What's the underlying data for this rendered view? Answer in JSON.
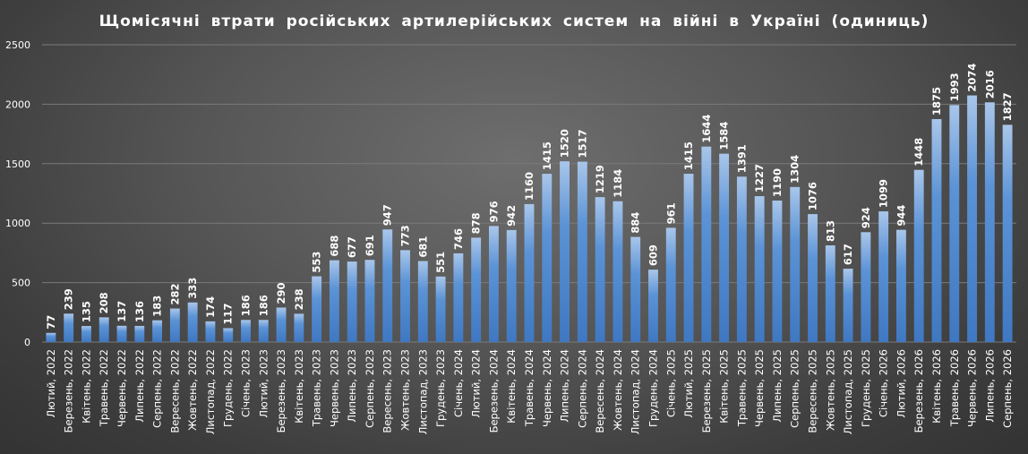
{
  "chart_data": {
    "type": "bar",
    "title": "Щомісячні втрати російських артилерійських систем на війні в Україні (одиниць)",
    "xlabel": "",
    "ylabel": "",
    "ylim": [
      0,
      2500
    ],
    "yticks": [
      0,
      500,
      1000,
      1500,
      2000,
      2500
    ],
    "grid": true,
    "categories": [
      "Лютий, 2022",
      "Березень, 2022",
      "Квітень, 2022",
      "Травень, 2022",
      "Червень, 2022",
      "Липень, 2022",
      "Серпень, 2022",
      "Вересень, 2022",
      "Жовтень, 2022",
      "Листопад, 2022",
      "Грудень, 2022",
      "Січень, 2023",
      "Лютий, 2023",
      "Березень, 2023",
      "Квітень, 2023",
      "Травень, 2023",
      "Червень, 2023",
      "Липень, 2023",
      "Серпень, 2023",
      "Вересень, 2023",
      "Жовтень, 2023",
      "Листопад, 2023",
      "Грудень, 2023",
      "Січень, 2024",
      "Лютий, 2024",
      "Березень, 2024",
      "Квітень, 2024",
      "Травень, 2024",
      "Червень, 2024",
      "Липень, 2024",
      "Серпень, 2024",
      "Вересень, 2024",
      "Жовтень, 2024",
      "Листопад, 2024",
      "Грудень, 2024",
      "Січень, 2025",
      "Лютий, 2025",
      "Березень, 2025",
      "Квітень, 2025",
      "Травень, 2025",
      "Червень, 2025",
      "Липень, 2025",
      "Серпень, 2025",
      "Вересень, 2025",
      "Жовтень, 2025",
      "Листопад, 2025",
      "Грудень, 2025",
      "Січень, 2026",
      "Лютий, 2026",
      "Березень, 2026",
      "Квітень, 2026",
      "Травень, 2026",
      "Червень, 2026",
      "Липень, 2026",
      "Серпень, 2026"
    ],
    "values": [
      77,
      239,
      135,
      208,
      137,
      136,
      183,
      282,
      333,
      174,
      117,
      186,
      186,
      290,
      238,
      553,
      688,
      677,
      691,
      947,
      773,
      681,
      551,
      746,
      878,
      976,
      942,
      1160,
      1415,
      1520,
      1517,
      1219,
      1184,
      884,
      609,
      961,
      1415,
      1644,
      1584,
      1391,
      1227,
      1190,
      1304,
      1076,
      813,
      617,
      924,
      1099,
      944,
      1448,
      1875,
      1993,
      2074,
      2016,
      1827
    ],
    "colors": {
      "bar_top": "#a9c6ea",
      "bar_mid": "#5b93d6",
      "bar_bottom": "#3f78c2",
      "text": "#ffffff",
      "grid": "#7a7a7a"
    }
  }
}
